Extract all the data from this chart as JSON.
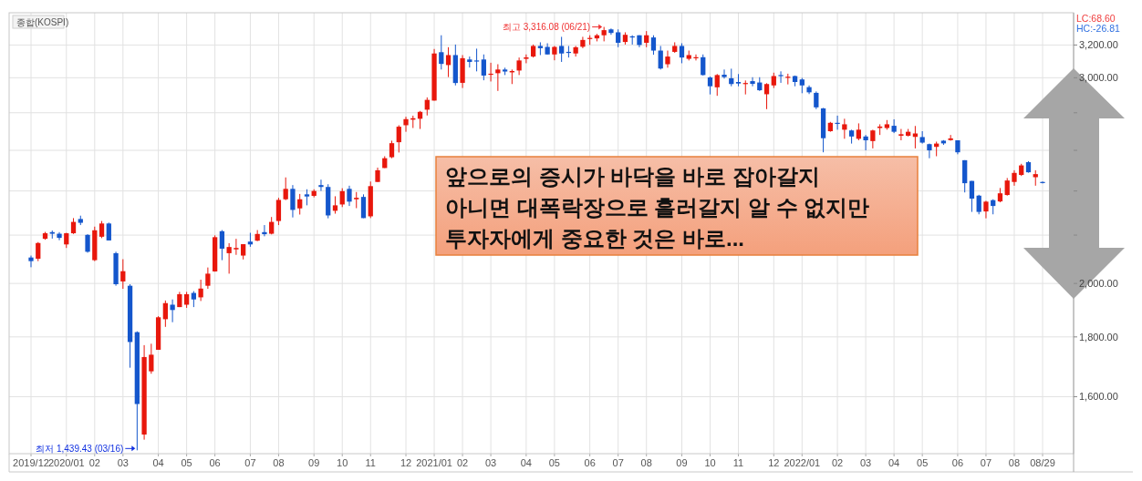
{
  "chart_data": {
    "type": "candlestick",
    "title": "종합(KOSPI)",
    "log": true,
    "grid": true,
    "ylim": [
      1430,
      3410
    ],
    "yticks": [
      {
        "value": 1600,
        "label": "1,600.00"
      },
      {
        "value": 1800,
        "label": "1,800.00"
      },
      {
        "value": 2000,
        "label": "2,000.00"
      },
      {
        "value": 2200,
        "label": null
      },
      {
        "value": 2400,
        "label": null
      },
      {
        "value": 2600,
        "label": null
      },
      {
        "value": 2800,
        "label": null
      },
      {
        "value": 3000,
        "label": "3,000.00"
      },
      {
        "value": 3200,
        "label": "3,200.00"
      }
    ],
    "annotations": [
      "LC:68.60",
      "HC:-26.81",
      "앞으로의 증시가 바닥을 바로 잡아갈지\n아니면 대폭락장으로 흘러갈지 알 수 없지만\n투자자에게 중요한 것은 바로...",
      "최고 3,316.08 (06/21)",
      "최저 1,439.43 (03/16)"
    ],
    "categories": [
      "2019/12",
      null,
      null,
      null,
      null,
      "2020/01",
      null,
      null,
      null,
      "02",
      null,
      null,
      null,
      "03",
      null,
      null,
      null,
      null,
      "04",
      null,
      null,
      null,
      "05",
      null,
      null,
      null,
      "06",
      null,
      null,
      null,
      null,
      "07",
      null,
      null,
      null,
      "08",
      null,
      null,
      null,
      null,
      "09",
      null,
      null,
      null,
      "10",
      null,
      null,
      null,
      "11",
      null,
      null,
      null,
      null,
      "12",
      null,
      null,
      null,
      "2021/01",
      null,
      null,
      null,
      "02",
      null,
      null,
      null,
      "03",
      null,
      null,
      null,
      null,
      "04",
      null,
      null,
      null,
      "05",
      null,
      null,
      null,
      null,
      "06",
      null,
      null,
      null,
      "07",
      null,
      null,
      null,
      "08",
      null,
      null,
      null,
      null,
      "09",
      null,
      null,
      null,
      "10",
      null,
      null,
      null,
      "11",
      null,
      null,
      null,
      null,
      "12",
      null,
      null,
      null,
      "2022/01",
      null,
      null,
      null,
      null,
      "02",
      null,
      null,
      null,
      "03",
      null,
      null,
      null,
      "04",
      null,
      null,
      null,
      "05",
      null,
      null,
      null,
      null,
      "06",
      null,
      null,
      null,
      "07",
      null,
      null,
      null,
      "08",
      null,
      null,
      null,
      "08/29"
    ],
    "ohlc": [
      [
        2105,
        2113,
        2065,
        2090
      ],
      [
        2100,
        2170,
        2090,
        2166
      ],
      [
        2184,
        2214,
        2180,
        2208
      ],
      [
        2213,
        2220,
        2185,
        2206
      ],
      [
        2206,
        2213,
        2178,
        2188
      ],
      [
        2160,
        2210,
        2145,
        2208
      ],
      [
        2208,
        2275,
        2205,
        2258
      ],
      [
        2271,
        2286,
        2244,
        2254
      ],
      [
        2201,
        2204,
        2125,
        2129
      ],
      [
        2094,
        2237,
        2090,
        2221
      ],
      [
        2193,
        2262,
        2187,
        2251
      ],
      [
        2251,
        2255,
        2177,
        2177
      ],
      [
        2123,
        2129,
        1991,
        1997
      ],
      [
        2008,
        2098,
        1979,
        2049
      ],
      [
        1991,
        1997,
        1694,
        1782
      ],
      [
        1817,
        1820,
        1439.43,
        1577
      ],
      [
        1485,
        1771,
        1470,
        1730
      ],
      [
        1682,
        1776,
        1674,
        1738
      ],
      [
        1755,
        1875,
        1755,
        1871
      ],
      [
        1864,
        1934,
        1836,
        1924
      ],
      [
        1918,
        1938,
        1853,
        1898
      ],
      [
        1909,
        1967,
        1909,
        1958
      ],
      [
        1918,
        1967,
        1906,
        1958
      ],
      [
        1963,
        1970,
        1909,
        1938
      ],
      [
        1946,
        2015,
        1932,
        1980
      ],
      [
        1991,
        2064,
        1979,
        2039
      ],
      [
        2048,
        2199,
        2047,
        2191
      ],
      [
        2217,
        2222,
        2094,
        2142
      ],
      [
        2123,
        2165,
        2039,
        2149
      ],
      [
        2139,
        2184,
        2116,
        2145
      ],
      [
        2113,
        2161,
        2097,
        2161
      ],
      [
        2172,
        2210,
        2150,
        2160
      ],
      [
        2176,
        2222,
        2174,
        2205
      ],
      [
        2213,
        2244,
        2195,
        2204
      ],
      [
        2206,
        2280,
        2203,
        2258
      ],
      [
        2262,
        2368,
        2244,
        2358
      ],
      [
        2361,
        2465,
        2357,
        2410
      ],
      [
        2410,
        2428,
        2278,
        2312
      ],
      [
        2319,
        2386,
        2291,
        2361
      ],
      [
        2384,
        2408,
        2333,
        2374
      ],
      [
        2377,
        2408,
        2370,
        2400
      ],
      [
        2428,
        2454,
        2400,
        2419
      ],
      [
        2419,
        2432,
        2274,
        2287
      ],
      [
        2308,
        2375,
        2295,
        2333
      ],
      [
        2337,
        2413,
        2325,
        2399
      ],
      [
        2410,
        2425,
        2330,
        2350
      ],
      [
        2361,
        2395,
        2320,
        2368
      ],
      [
        2372,
        2384,
        2275,
        2275
      ],
      [
        2283,
        2445,
        2275,
        2423
      ],
      [
        2443,
        2513,
        2443,
        2500
      ],
      [
        2511,
        2570,
        2511,
        2560
      ],
      [
        2565,
        2650,
        2560,
        2637
      ],
      [
        2642,
        2732,
        2589,
        2724
      ],
      [
        2732,
        2778,
        2697,
        2765
      ],
      [
        2762,
        2784,
        2717,
        2770
      ],
      [
        2767,
        2810,
        2712,
        2805
      ],
      [
        2817,
        2886,
        2785,
        2872
      ],
      [
        2868,
        3175,
        2868,
        3147
      ],
      [
        3155,
        3262,
        3049,
        3083
      ],
      [
        3076,
        3186,
        3004,
        3137
      ],
      [
        3137,
        3203,
        2955,
        2969
      ],
      [
        2970,
        3137,
        2940,
        3118
      ],
      [
        3110,
        3128,
        3061,
        3095
      ],
      [
        3104,
        3177,
        3038,
        3100
      ],
      [
        3110,
        3141,
        2985,
        3013
      ],
      [
        3018,
        3090,
        2978,
        3024
      ],
      [
        3027,
        3081,
        2923,
        3049
      ],
      [
        3049,
        3060,
        3016,
        3037
      ],
      [
        3032,
        3049,
        2963,
        3040
      ],
      [
        3043,
        3122,
        3016,
        3104
      ],
      [
        3114,
        3141,
        3087,
        3123
      ],
      [
        3128,
        3203,
        3122,
        3194
      ],
      [
        3194,
        3217,
        3137,
        3180
      ],
      [
        3188,
        3211,
        3141,
        3141
      ],
      [
        3141,
        3194,
        3105,
        3188
      ],
      [
        3194,
        3252,
        3095,
        3147
      ],
      [
        3157,
        3194,
        3122,
        3151
      ],
      [
        3147,
        3194,
        3128,
        3186
      ],
      [
        3189,
        3252,
        3180,
        3232
      ],
      [
        3238,
        3262,
        3201,
        3245
      ],
      [
        3242,
        3271,
        3223,
        3262
      ],
      [
        3262,
        3316.08,
        3223,
        3295
      ],
      [
        3300,
        3306,
        3265,
        3277
      ],
      [
        3281,
        3300,
        3186,
        3214
      ],
      [
        3219,
        3281,
        3203,
        3265
      ],
      [
        3255,
        3262,
        3203,
        3248
      ],
      [
        3262,
        3262,
        3186,
        3200
      ],
      [
        3214,
        3289,
        3186,
        3262
      ],
      [
        3248,
        3262,
        3139,
        3165
      ],
      [
        3165,
        3194,
        3049,
        3055
      ],
      [
        3081,
        3165,
        3060,
        3128
      ],
      [
        3157,
        3217,
        3151,
        3194
      ],
      [
        3194,
        3211,
        3087,
        3122
      ],
      [
        3114,
        3165,
        3104,
        3137
      ],
      [
        3118,
        3141,
        3104,
        3124
      ],
      [
        3124,
        3141,
        3013,
        3016
      ],
      [
        3002,
        3007,
        2903,
        2950
      ],
      [
        2944,
        3022,
        2895,
        3016
      ],
      [
        3018,
        3049,
        2995,
        3004
      ],
      [
        2997,
        3054,
        2950,
        2963
      ],
      [
        2975,
        3022,
        2950,
        2966
      ],
      [
        2963,
        2984,
        2903,
        2969
      ],
      [
        2980,
        3003,
        2950,
        2964
      ],
      [
        2972,
        3003,
        2923,
        2927
      ],
      [
        2904,
        2968,
        2820,
        2963
      ],
      [
        2955,
        3030,
        2940,
        3010
      ],
      [
        3016,
        3038,
        2970,
        3013
      ],
      [
        3000,
        3024,
        2961,
        3006
      ],
      [
        3010,
        3013,
        2950,
        2975
      ],
      [
        2990,
        2999,
        2910,
        2955
      ],
      [
        2945,
        2955,
        2905,
        2915
      ],
      [
        2912,
        2920,
        2820,
        2830
      ],
      [
        2824,
        2827,
        2590,
        2663
      ],
      [
        2700,
        2750,
        2697,
        2745
      ],
      [
        2745,
        2784,
        2708,
        2742
      ],
      [
        2708,
        2767,
        2660,
        2737
      ],
      [
        2704,
        2708,
        2635,
        2672
      ],
      [
        2660,
        2742,
        2652,
        2708
      ],
      [
        2672,
        2680,
        2600,
        2652
      ],
      [
        2648,
        2708,
        2610,
        2704
      ],
      [
        2717,
        2737,
        2680,
        2725
      ],
      [
        2717,
        2760,
        2708,
        2737
      ],
      [
        2729,
        2764,
        2690,
        2697
      ],
      [
        2676,
        2712,
        2652,
        2684
      ],
      [
        2676,
        2712,
        2672,
        2697
      ],
      [
        2670,
        2728,
        2610,
        2688
      ],
      [
        2669,
        2700,
        2635,
        2640
      ],
      [
        2632,
        2635,
        2560,
        2600
      ],
      [
        2618,
        2645,
        2570,
        2635
      ],
      [
        2650,
        2653,
        2628,
        2636
      ],
      [
        2653,
        2680,
        2650,
        2662
      ],
      [
        2652,
        2652,
        2580,
        2590
      ],
      [
        2550,
        2550,
        2393,
        2437
      ],
      [
        2448,
        2448,
        2303,
        2364
      ],
      [
        2378,
        2382,
        2292,
        2303
      ],
      [
        2305,
        2354,
        2274,
        2350
      ],
      [
        2357,
        2361,
        2292,
        2330
      ],
      [
        2351,
        2414,
        2347,
        2389
      ],
      [
        2381,
        2462,
        2378,
        2450
      ],
      [
        2443,
        2500,
        2425,
        2487
      ],
      [
        2477,
        2532,
        2472,
        2524
      ],
      [
        2540,
        2545,
        2488,
        2490
      ],
      [
        2466,
        2500,
        2425,
        2481
      ],
      [
        2443,
        2445,
        2436,
        2439
      ]
    ],
    "colors": [
      "#1456cc",
      "#e8170c",
      "#e8170c",
      "#1456cc",
      "#1456cc",
      "#e8170c",
      "#e8170c",
      "#1456cc",
      "#1456cc",
      "#e8170c",
      "#e8170c",
      "#1456cc",
      "#1456cc",
      "#e8170c",
      "#1456cc",
      "#1456cc",
      "#e8170c",
      "#e8170c",
      "#e8170c",
      "#e8170c",
      "#1456cc",
      "#e8170c",
      "#e8170c",
      "#1456cc",
      "#e8170c",
      "#e8170c",
      "#e8170c",
      "#1456cc",
      "#e8170c",
      "#e8170c",
      "#e8170c",
      "#1456cc",
      "#e8170c",
      "#1456cc",
      "#e8170c",
      "#e8170c",
      "#e8170c",
      "#1456cc",
      "#e8170c",
      "#1456cc",
      "#e8170c",
      "#1456cc",
      "#1456cc",
      "#e8170c",
      "#e8170c",
      "#1456cc",
      "#e8170c",
      "#1456cc",
      "#e8170c",
      "#e8170c",
      "#e8170c",
      "#e8170c",
      "#e8170c",
      "#e8170c",
      "#e8170c",
      "#e8170c",
      "#e8170c",
      "#e8170c",
      "#1456cc",
      "#e8170c",
      "#1456cc",
      "#e8170c",
      "#1456cc",
      "#1456cc",
      "#1456cc",
      "#e8170c",
      "#e8170c",
      "#1456cc",
      "#e8170c",
      "#e8170c",
      "#e8170c",
      "#e8170c",
      "#1456cc",
      "#1456cc",
      "#e8170c",
      "#1456cc",
      "#1456cc",
      "#e8170c",
      "#e8170c",
      "#e8170c",
      "#e8170c",
      "#e8170c",
      "#1456cc",
      "#1456cc",
      "#e8170c",
      "#1456cc",
      "#1456cc",
      "#e8170c",
      "#1456cc",
      "#1456cc",
      "#e8170c",
      "#e8170c",
      "#1456cc",
      "#e8170c",
      "#e8170c",
      "#1456cc",
      "#1456cc",
      "#e8170c",
      "#1456cc",
      "#1456cc",
      "#1456cc",
      "#e8170c",
      "#1456cc",
      "#1456cc",
      "#e8170c",
      "#e8170c",
      "#1456cc",
      "#e8170c",
      "#1456cc",
      "#1456cc",
      "#1456cc",
      "#1456cc",
      "#1456cc",
      "#e8170c",
      "#1456cc",
      "#e8170c",
      "#1456cc",
      "#e8170c",
      "#1456cc",
      "#e8170c",
      "#e8170c",
      "#e8170c",
      "#1456cc",
      "#e8170c",
      "#e8170c",
      "#e8170c",
      "#1456cc",
      "#1456cc",
      "#e8170c",
      "#1456cc",
      "#e8170c",
      "#1456cc",
      "#1456cc",
      "#1456cc",
      "#1456cc",
      "#e8170c",
      "#1456cc",
      "#e8170c",
      "#e8170c",
      "#e8170c",
      "#e8170c",
      "#1456cc",
      "#e8170c",
      "#1456cc"
    ]
  }
}
